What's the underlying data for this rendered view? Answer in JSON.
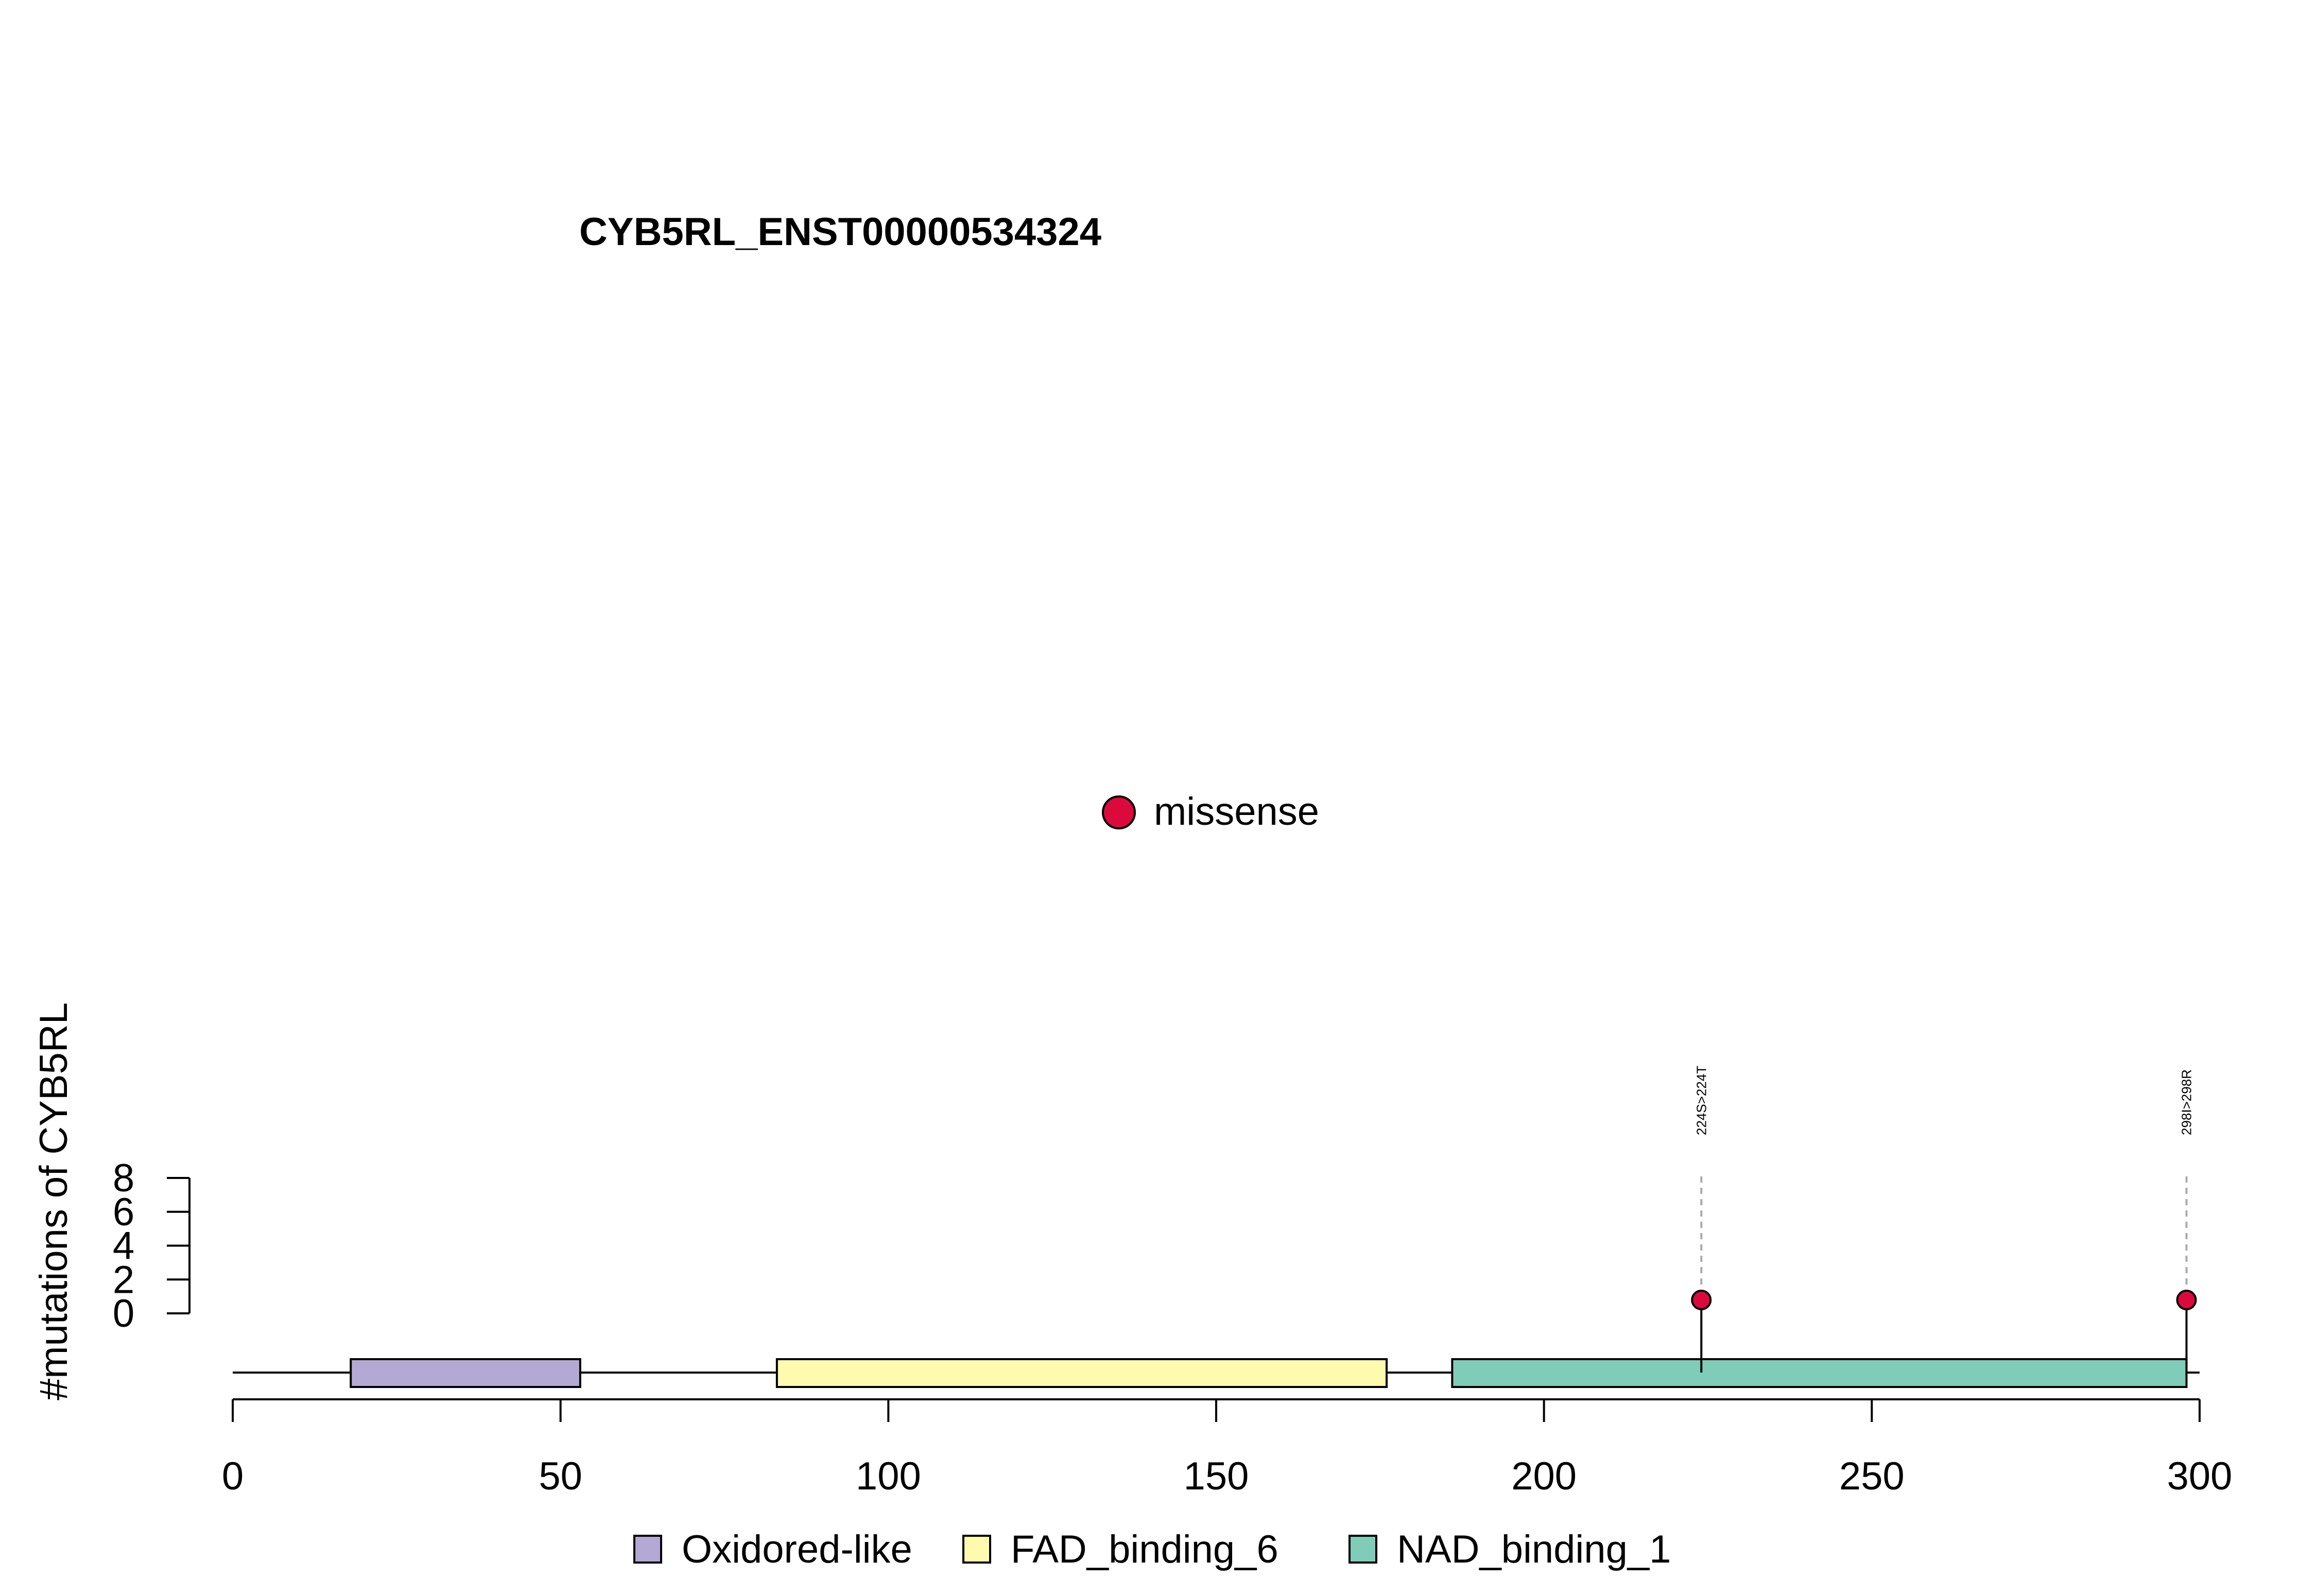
{
  "chart_data": {
    "type": "lollipop",
    "title": "CYB5RL_ENST00000534324",
    "ylabel": "#mutations of CYB5RL",
    "xlabel": "",
    "xlim": [
      0,
      300
    ],
    "x_ticks": [
      0,
      50,
      100,
      150,
      200,
      250,
      300
    ],
    "ylim": [
      0,
      8
    ],
    "y_ticks": [
      0,
      2,
      4,
      6,
      8
    ],
    "protein_length": 300,
    "mutation_legend": [
      {
        "label": "missense",
        "color": "#DC0A3C"
      }
    ],
    "domains": [
      {
        "name": "Oxidored-like",
        "start": 18,
        "end": 53,
        "color": "#B3A9D4"
      },
      {
        "name": "FAD_binding_6",
        "start": 83,
        "end": 176,
        "color": "#FFFBAE"
      },
      {
        "name": "NAD_binding_1",
        "start": 186,
        "end": 298,
        "color": "#7FCDB9"
      }
    ],
    "mutations": [
      {
        "position": 224,
        "count": 1,
        "label": "224S>224T",
        "type": "missense"
      },
      {
        "position": 298,
        "count": 1,
        "label": "298I>298R",
        "type": "missense"
      }
    ],
    "grid": false
  }
}
